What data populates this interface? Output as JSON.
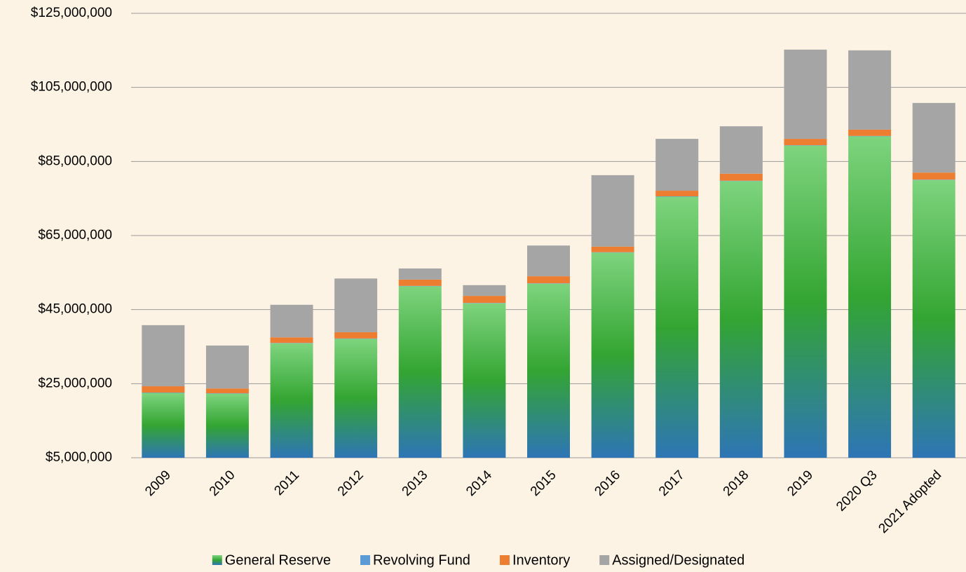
{
  "chart_data": {
    "type": "stacked_bar",
    "categories": [
      "2009",
      "2010",
      "2011",
      "2012",
      "2013",
      "2014",
      "2015",
      "2016",
      "2017",
      "2018",
      "2019",
      "2020 Q3",
      "2021 Adopted"
    ],
    "series": [
      {
        "name": "General Reserve",
        "color": "#33a532",
        "values": [
          22500000,
          22300000,
          35900000,
          37100000,
          51300000,
          46700000,
          52000000,
          60400000,
          75500000,
          79700000,
          89300000,
          91800000,
          80000000
        ]
      },
      {
        "name": "Revolving Fund",
        "color": "#5b9bd5",
        "values": [
          100000,
          100000,
          100000,
          100000,
          100000,
          100000,
          100000,
          100000,
          100000,
          100000,
          100000,
          100000,
          100000
        ]
      },
      {
        "name": "Inventory",
        "color": "#ed7d31",
        "values": [
          1700000,
          1300000,
          1500000,
          1700000,
          1700000,
          1900000,
          1900000,
          1500000,
          1500000,
          1900000,
          1700000,
          1700000,
          1900000
        ]
      },
      {
        "name": "Assigned/Designated",
        "color": "#a5a5a5",
        "values": [
          16500000,
          11600000,
          8800000,
          14500000,
          3000000,
          2900000,
          8300000,
          19300000,
          14000000,
          12800000,
          24100000,
          21400000,
          18800000
        ]
      }
    ],
    "ylim": [
      5000000,
      125000000
    ],
    "yticks": [
      {
        "value": 5000000,
        "label": "$5,000,000"
      },
      {
        "value": 25000000,
        "label": "$25,000,000"
      },
      {
        "value": 45000000,
        "label": "$45,000,000"
      },
      {
        "value": 65000000,
        "label": "$65,000,000"
      },
      {
        "value": 85000000,
        "label": "$85,000,000"
      },
      {
        "value": 105000000,
        "label": "$105,000,000"
      },
      {
        "value": 125000000,
        "label": "$125,000,000"
      }
    ],
    "grid": true,
    "legend": "bottom"
  }
}
